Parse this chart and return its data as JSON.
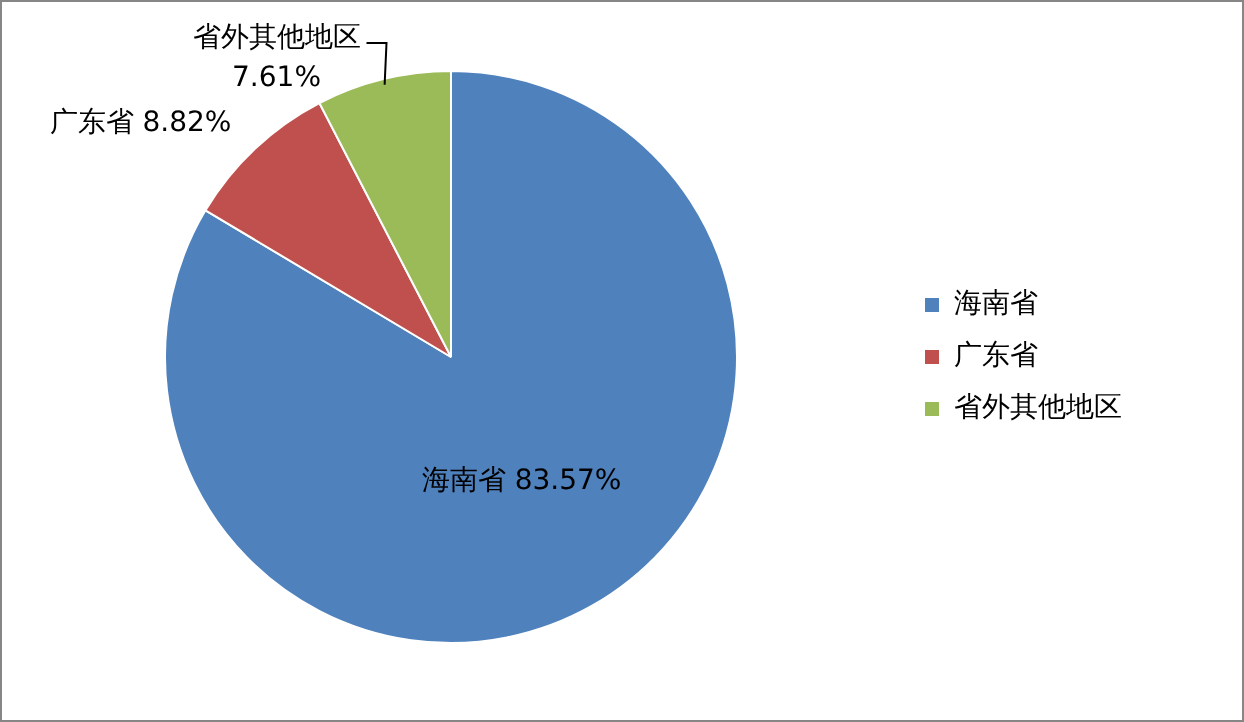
{
  "chart_data": {
    "type": "pie",
    "categories": [
      "海南省",
      "广东省",
      "省外其他地区"
    ],
    "values": [
      83.57,
      8.82,
      7.61
    ],
    "colors": [
      "#4f81bd",
      "#c0504d",
      "#9bbb59"
    ],
    "value_labels": [
      "海南省 83.57%",
      "广东省 8.82%",
      "省外其他地区 7.61%"
    ],
    "legend": "right"
  }
}
